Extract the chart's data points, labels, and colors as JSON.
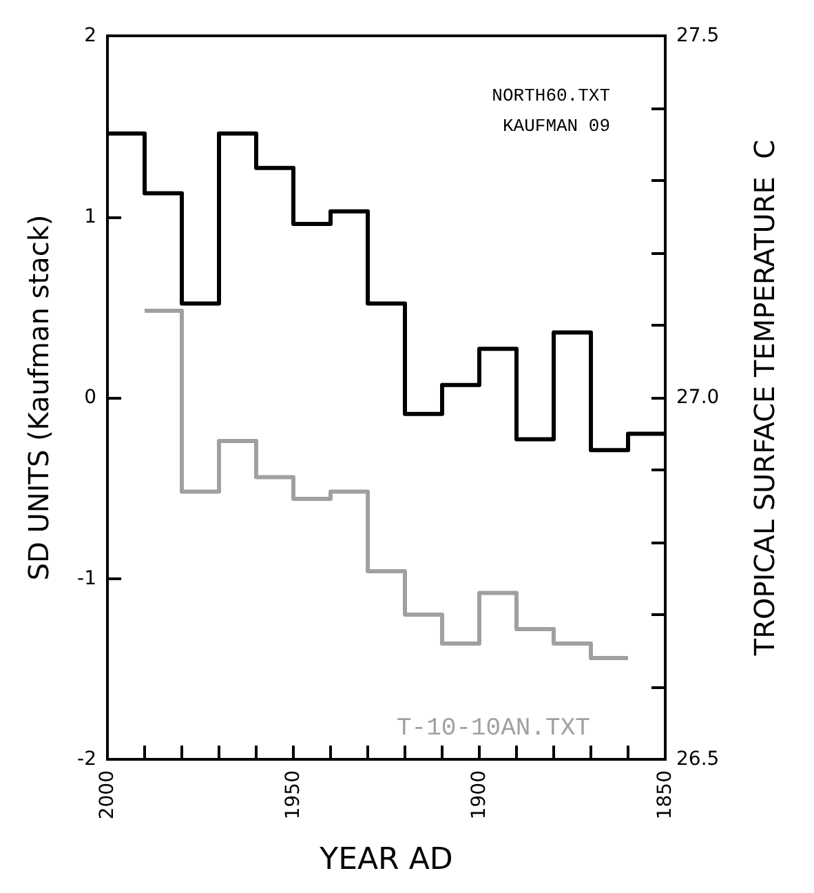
{
  "chart_data": {
    "type": "step",
    "xlabel": "YEAR AD",
    "ylabel": "SD UNITS (Kaufman stack)",
    "y2label": "TROPICAL SURFACE TEMPERATURE  C",
    "annotations": [
      "NORTH60.TXT",
      "KAUFMAN 09"
    ],
    "xlim": [
      2000,
      1850
    ],
    "xticks": [
      2000,
      {
        "value": 1990,
        "label": null
      },
      {
        "value": 1980,
        "label": null
      },
      {
        "value": 1970,
        "label": null
      },
      {
        "value": 1960,
        "label": null
      },
      1950,
      {
        "value": 1940,
        "label": null
      },
      {
        "value": 1930,
        "label": null
      },
      {
        "value": 1920,
        "label": null
      },
      {
        "value": 1910,
        "label": null
      },
      1900,
      {
        "value": 1890,
        "label": null
      },
      {
        "value": 1880,
        "label": null
      },
      {
        "value": 1870,
        "label": null
      },
      {
        "value": 1860,
        "label": null
      },
      1850
    ],
    "ylim": [
      -2,
      2
    ],
    "yticks": [
      -2,
      -1,
      0,
      1,
      2
    ],
    "y2lim": [
      26.5,
      27.5
    ],
    "y2ticks": [
      {
        "value": 26.5,
        "label": "26.5"
      },
      {
        "value": 26.6,
        "label": null
      },
      {
        "value": 26.7,
        "label": null
      },
      {
        "value": 26.8,
        "label": null
      },
      {
        "value": 26.9,
        "label": null
      },
      {
        "value": 27.0,
        "label": "27.0"
      },
      {
        "value": 27.1,
        "label": null
      },
      {
        "value": 27.2,
        "label": null
      },
      {
        "value": 27.3,
        "label": null
      },
      {
        "value": 27.4,
        "label": null
      },
      {
        "value": 27.5,
        "label": "27.5"
      }
    ],
    "grid": false,
    "legend": false,
    "marker": "none",
    "line_style": "solid",
    "series": [
      {
        "color": "#000000",
        "x": [
          2000,
          1990,
          1980,
          1970,
          1960,
          1950,
          1940,
          1930,
          1920,
          1910,
          1900,
          1890,
          1880,
          1870,
          1860,
          1850
        ],
        "values": [
          1.46,
          1.13,
          0.52,
          1.46,
          1.27,
          0.96,
          1.03,
          0.52,
          -0.09,
          0.07,
          0.27,
          -0.23,
          0.36,
          -0.29,
          -0.2,
          -0.2
        ]
      },
      {
        "name": "T-10-10AN.TXT",
        "color": "#a0a0a0",
        "axis": "y2",
        "x": [
          1990,
          1980,
          1970,
          1960,
          1950,
          1940,
          1930,
          1920,
          1910,
          1900,
          1890,
          1880,
          1870,
          1860
        ],
        "values": [
          27.12,
          26.87,
          26.94,
          26.89,
          26.86,
          26.87,
          26.76,
          26.7,
          26.66,
          26.73,
          26.68,
          26.66,
          26.64,
          26.64
        ]
      }
    ]
  }
}
